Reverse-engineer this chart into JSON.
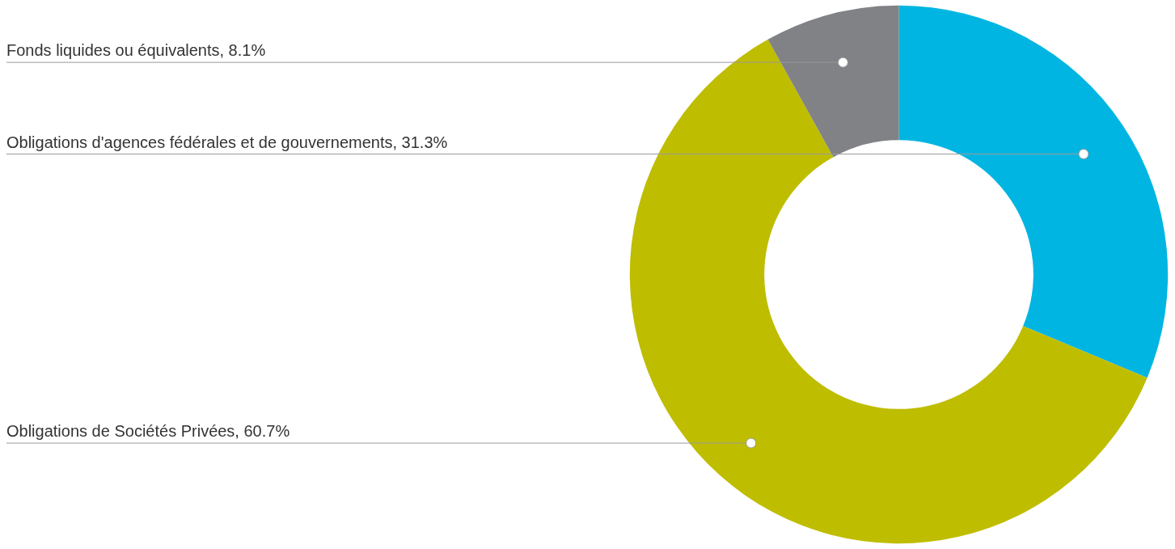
{
  "chart_data": {
    "type": "donut",
    "categories": [
      "Obligations d'agences fédérales et de gouvernements",
      "Obligations de Sociétés Privées",
      "Fonds liquides ou équivalents"
    ],
    "values": [
      31.3,
      60.7,
      8.1
    ],
    "value_labels": [
      "31.3%",
      "60.7%",
      "8.1%"
    ],
    "colors": [
      "#00b5e2",
      "#bfbd00",
      "#808285"
    ],
    "legend": false
  }
}
